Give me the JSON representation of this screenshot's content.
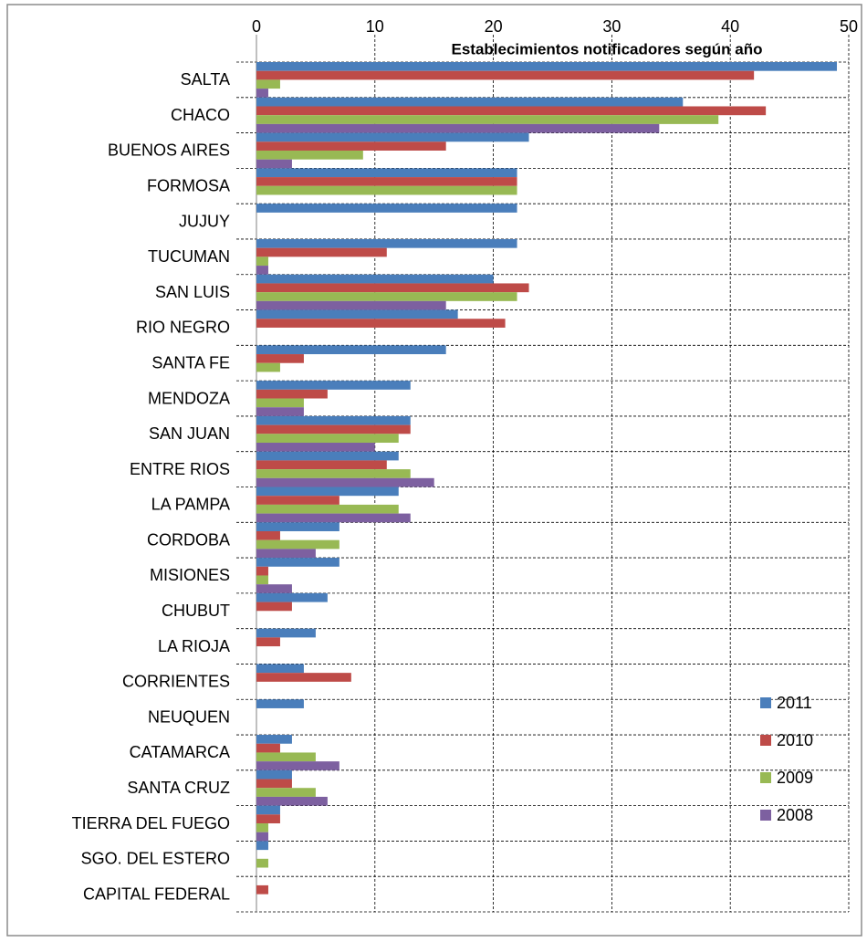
{
  "chart_data": {
    "type": "bar",
    "orientation": "horizontal",
    "title": "Establecimientos notificadores según año",
    "categories": [
      "SALTA",
      "CHACO",
      "BUENOS AIRES",
      "FORMOSA",
      "JUJUY",
      "TUCUMAN",
      "SAN LUIS",
      "RIO NEGRO",
      "SANTA FE",
      "MENDOZA",
      "SAN JUAN",
      "ENTRE RIOS",
      "LA PAMPA",
      "CORDOBA",
      "MISIONES",
      "CHUBUT",
      "LA RIOJA",
      "CORRIENTES",
      "NEUQUEN",
      "CATAMARCA",
      "SANTA CRUZ",
      "TIERRA DEL FUEGO",
      "SGO. DEL ESTERO",
      "CAPITAL FEDERAL"
    ],
    "series": [
      {
        "name": "2011",
        "color": "#4a7ebb",
        "values": [
          49,
          36,
          23,
          22,
          22,
          22,
          20,
          17,
          16,
          13,
          13,
          12,
          12,
          7,
          7,
          6,
          5,
          4,
          4,
          3,
          3,
          2,
          1,
          0
        ]
      },
      {
        "name": "2010",
        "color": "#be4b48",
        "values": [
          42,
          43,
          16,
          22,
          0,
          11,
          23,
          21,
          4,
          6,
          13,
          11,
          7,
          2,
          1,
          3,
          2,
          8,
          0,
          2,
          3,
          2,
          0,
          1
        ]
      },
      {
        "name": "2009",
        "color": "#98b954",
        "values": [
          2,
          39,
          9,
          22,
          0,
          1,
          22,
          0,
          2,
          4,
          12,
          13,
          12,
          7,
          1,
          0,
          0,
          0,
          0,
          5,
          5,
          1,
          1,
          0
        ]
      },
      {
        "name": "2008",
        "color": "#7d60a0",
        "values": [
          1,
          34,
          3,
          0,
          0,
          1,
          16,
          0,
          0,
          4,
          10,
          15,
          13,
          5,
          3,
          0,
          0,
          0,
          0,
          7,
          6,
          1,
          0,
          0
        ]
      }
    ],
    "xlim": [
      0,
      50
    ],
    "xticks": [
      0,
      10,
      20,
      30,
      40,
      50
    ],
    "grid": true,
    "legend": "right"
  }
}
